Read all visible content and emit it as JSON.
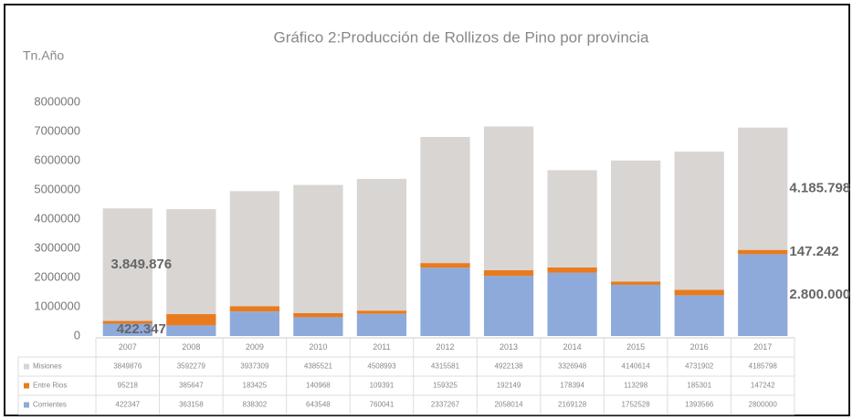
{
  "chart_data": {
    "type": "bar",
    "stacked": true,
    "title": "Gráfico 2:Producción de Rollizos de Pino por provincia",
    "y_label": "Tn.Año",
    "categories": [
      "2007",
      "2008",
      "2009",
      "2010",
      "2011",
      "2012",
      "2013",
      "2014",
      "2015",
      "2016",
      "2017"
    ],
    "series": [
      {
        "name": "Misiones",
        "color": "#d9d5d3",
        "values": [
          3849876,
          3592279,
          3937309,
          4385521,
          4508993,
          4315581,
          4922138,
          3326948,
          4140614,
          4731902,
          4185798
        ],
        "value_labels": [
          "3.849.876",
          null,
          null,
          null,
          null,
          null,
          null,
          null,
          null,
          null,
          "4.185.798"
        ]
      },
      {
        "name": "Entre Rios",
        "color": "#e87b1e",
        "values": [
          95218,
          385647,
          183425,
          140968,
          109391,
          159325,
          192149,
          178394,
          113298,
          185301,
          147242
        ],
        "value_labels": [
          null,
          null,
          null,
          null,
          null,
          null,
          null,
          null,
          null,
          null,
          "147.242"
        ]
      },
      {
        "name": "Corrientes",
        "color": "#8eaadb",
        "values": [
          422347,
          363158,
          838302,
          643548,
          760041,
          2337267,
          2058014,
          2169128,
          1752528,
          1393566,
          2800000
        ],
        "value_labels": [
          "422.347",
          null,
          null,
          null,
          null,
          null,
          null,
          null,
          null,
          null,
          "2.800.000"
        ]
      }
    ],
    "ylim": [
      0,
      8000000
    ],
    "yticks": [
      0,
      1000000,
      2000000,
      3000000,
      4000000,
      5000000,
      6000000,
      7000000,
      8000000
    ],
    "grid": false
  }
}
